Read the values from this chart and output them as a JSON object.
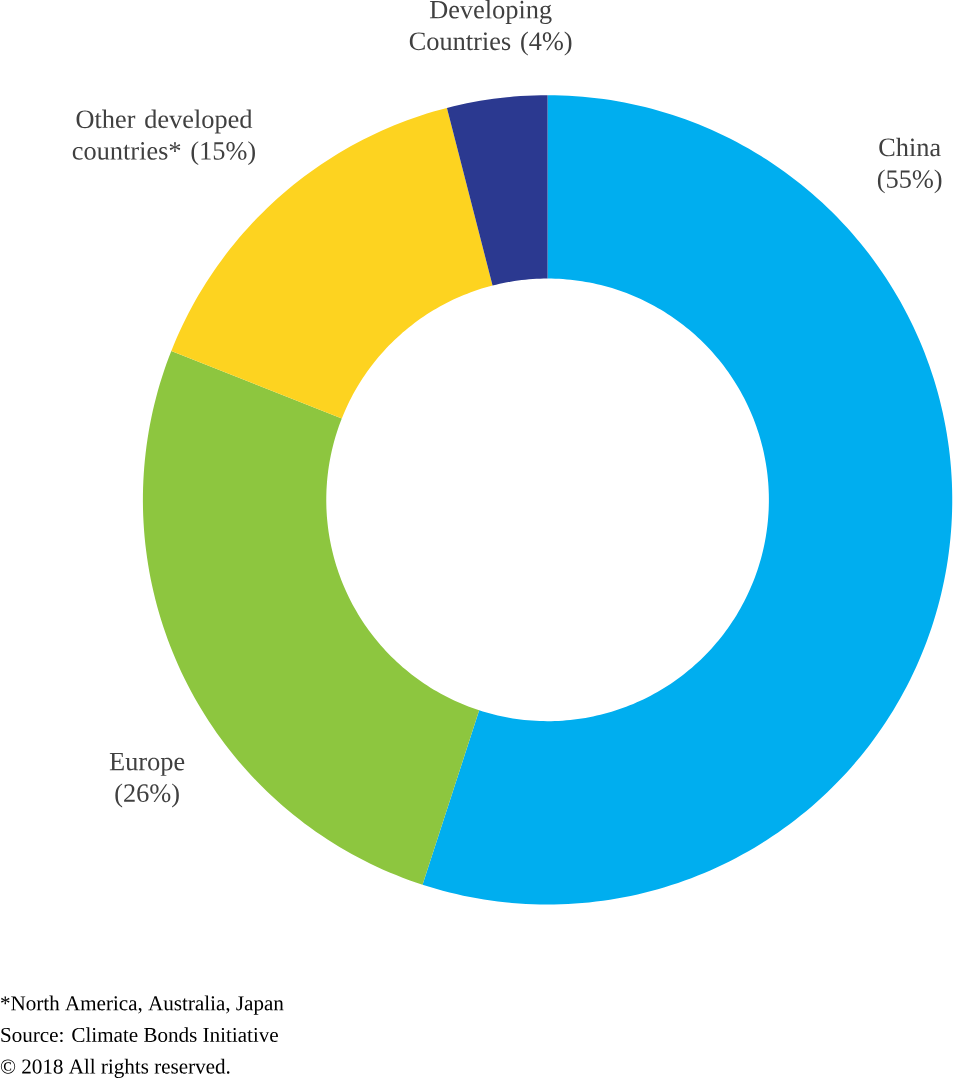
{
  "chart_data": {
    "type": "donut",
    "categories": [
      "China",
      "Europe",
      "Other developed countries*",
      "Developing Countries"
    ],
    "values": [
      55,
      26,
      15,
      4
    ],
    "value_labels": [
      "(55%)",
      "(26%)",
      "(15%)",
      "(4%)"
    ],
    "colors": [
      "#00aeef",
      "#8dc63f",
      "#fdd320",
      "#2b3990"
    ],
    "annotations": [
      "*North America, Australia, Japan",
      "Source: Climate Bonds Initiative",
      "© 2018 All rights reserved."
    ]
  }
}
